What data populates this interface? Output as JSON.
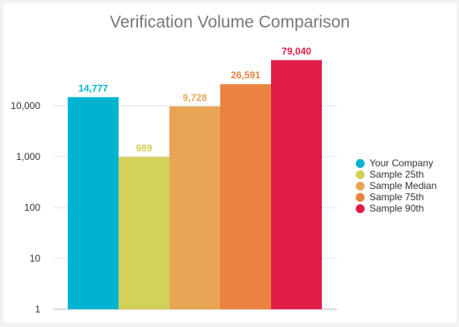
{
  "chart_data": {
    "type": "bar",
    "title": "Verification Volume Comparison",
    "scale": "log",
    "ylim": [
      1,
      100000
    ],
    "y_ticks": [
      {
        "value": 1,
        "label": "1"
      },
      {
        "value": 10,
        "label": "10"
      },
      {
        "value": 100,
        "label": "100"
      },
      {
        "value": 1000,
        "label": "1,000"
      },
      {
        "value": 10000,
        "label": "10,000"
      }
    ],
    "grid": true,
    "legend_position": "right",
    "series": [
      {
        "name": "Your Company",
        "value": 14777,
        "label": "14,777",
        "color": "#00b4d1"
      },
      {
        "name": "Sample 25th",
        "value": 989,
        "label": "989",
        "color": "#d3d05a"
      },
      {
        "name": "Sample Median",
        "value": 9728,
        "label": "9,728",
        "color": "#e8a556"
      },
      {
        "name": "Sample 75th",
        "value": 26591,
        "label": "26,591",
        "color": "#ea8240"
      },
      {
        "name": "Sample 90th",
        "value": 79040,
        "label": "79,040",
        "color": "#e11d48"
      }
    ]
  }
}
